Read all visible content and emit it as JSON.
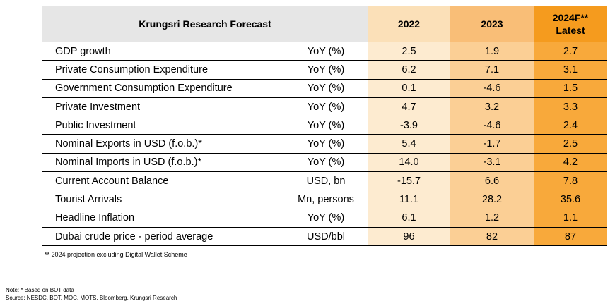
{
  "table": {
    "title": "Krungsri Research Forecast",
    "col_2022": "2022",
    "col_2023": "2023",
    "col_2024_line1": "2024F**",
    "col_2024_line2": "Latest",
    "rows": [
      {
        "label": "GDP growth",
        "unit": "YoY (%)",
        "v2022": "2.5",
        "v2023": "1.9",
        "v2024": "2.7"
      },
      {
        "label": "Private Consumption Expenditure",
        "unit": "YoY (%)",
        "v2022": "6.2",
        "v2023": "7.1",
        "v2024": "3.1"
      },
      {
        "label": "Government Consumption Expenditure",
        "unit": "YoY (%)",
        "v2022": "0.1",
        "v2023": "-4.6",
        "v2024": "1.5"
      },
      {
        "label": "Private Investment",
        "unit": "YoY (%)",
        "v2022": "4.7",
        "v2023": "3.2",
        "v2024": "3.3"
      },
      {
        "label": "Public Investment",
        "unit": "YoY (%)",
        "v2022": "-3.9",
        "v2023": "-4.6",
        "v2024": "2.4"
      },
      {
        "label": "Nominal Exports in USD (f.o.b.)*",
        "unit": "YoY (%)",
        "v2022": "5.4",
        "v2023": "-1.7",
        "v2024": "2.5"
      },
      {
        "label": "Nominal Imports in USD (f.o.b.)*",
        "unit": "YoY (%)",
        "v2022": "14.0",
        "v2023": "-3.1",
        "v2024": "4.2"
      },
      {
        "label": "Current Account Balance",
        "unit": "USD, bn",
        "v2022": "-15.7",
        "v2023": "6.6",
        "v2024": "7.8"
      },
      {
        "label": "Tourist Arrivals",
        "unit": "Mn, persons",
        "v2022": "11.1",
        "v2023": "28.2",
        "v2024": "35.6"
      },
      {
        "label": "Headline Inflation",
        "unit": "YoY (%)",
        "v2022": "6.1",
        "v2023": "1.2",
        "v2024": "1.1"
      },
      {
        "label": "Dubai crude price - period average",
        "unit": "USD/bbl",
        "v2022": "96",
        "v2023": "82",
        "v2024": "87"
      }
    ]
  },
  "footnote": "** 2024 projection excluding Digital Wallet Scheme",
  "note": "Note: * Based on BOT data",
  "source": "Source: NESDC, BOT, MOC, MOTS, Bloomberg, Krungsri Research",
  "colors": {
    "header_gray": "#e6e6e6",
    "col_2022": "#fdebd0",
    "col_2023": "#fbcf95",
    "col_2024": "#f8a93b"
  }
}
